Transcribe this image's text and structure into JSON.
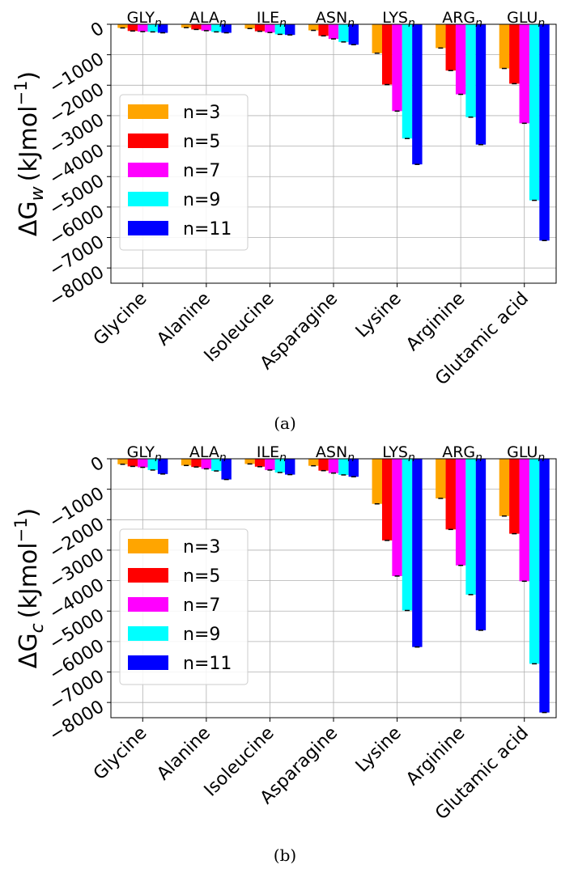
{
  "captions": [
    "(a)",
    "(b)"
  ],
  "colors": [
    "#ffa500",
    "#ff0000",
    "#ff00ff",
    "#00ffff",
    "#0000ff"
  ],
  "chart_data": [
    {
      "type": "bar",
      "ylabel_prefix": "ΔG",
      "ylabel_sub": "w",
      "ylabel_unit": "(kJmol",
      "ylabel_exp": "−1",
      "ylabel_close": ")",
      "categories": [
        "Glycine",
        "Alanine",
        "Isoleucine",
        "Asparagine",
        "Lysine",
        "Arginine",
        "Glutamic acid"
      ],
      "group_labels": [
        {
          "base": "GLY",
          "sub": "n"
        },
        {
          "base": "ALA",
          "sub": "n"
        },
        {
          "base": "ILE",
          "sub": "n"
        },
        {
          "base": "ASN",
          "sub": "n"
        },
        {
          "base": "LYS",
          "sub": "n"
        },
        {
          "base": "ARG",
          "sub": "n"
        },
        {
          "base": "GLU",
          "sub": "n"
        }
      ],
      "ylim": [
        -8500,
        0
      ],
      "yticks": [
        0,
        -1000,
        -2000,
        -3000,
        -4000,
        -5000,
        -6000,
        -7000,
        -8000
      ],
      "ytick_labels": [
        "0",
        "−1000",
        "−2000",
        "−3000",
        "−4000",
        "−5000",
        "−6000",
        "−7000",
        "−8000"
      ],
      "grid": true,
      "legend_position": "lower-left",
      "series": [
        {
          "name": "n=3",
          "values": [
            -120,
            -110,
            -140,
            -200,
            -950,
            -780,
            -1450
          ]
        },
        {
          "name": "n=5",
          "values": [
            -220,
            -170,
            -230,
            -380,
            -1980,
            -1520,
            -1950
          ]
        },
        {
          "name": "n=7",
          "values": [
            -240,
            -210,
            -270,
            -480,
            -2850,
            -2300,
            -3250
          ]
        },
        {
          "name": "n=9",
          "values": [
            -250,
            -250,
            -330,
            -580,
            -3750,
            -3050,
            -5780
          ]
        },
        {
          "name": "n=11",
          "values": [
            -280,
            -280,
            -350,
            -670,
            -4600,
            -3950,
            -7100
          ]
        }
      ]
    },
    {
      "type": "bar",
      "ylabel_prefix": "ΔG",
      "ylabel_sub": "c",
      "ylabel_unit": "(kJmol",
      "ylabel_exp": "−1",
      "ylabel_close": ")",
      "categories": [
        "Glycine",
        "Alanine",
        "Isoleucine",
        "Asparagine",
        "Lysine",
        "Arginine",
        "Glutamic acid"
      ],
      "group_labels": [
        {
          "base": "GLY",
          "sub": "n"
        },
        {
          "base": "ALA",
          "sub": "n"
        },
        {
          "base": "ILE",
          "sub": "n"
        },
        {
          "base": "ASN",
          "sub": "n"
        },
        {
          "base": "LYS",
          "sub": "n"
        },
        {
          "base": "ARG",
          "sub": "n"
        },
        {
          "base": "GLU",
          "sub": "n"
        }
      ],
      "ylim": [
        -8500,
        0
      ],
      "yticks": [
        0,
        -1000,
        -2000,
        -3000,
        -4000,
        -5000,
        -6000,
        -7000,
        -8000
      ],
      "ytick_labels": [
        "0",
        "−1000",
        "−2000",
        "−3000",
        "−4000",
        "−5000",
        "−6000",
        "−7000",
        "−8000"
      ],
      "grid": true,
      "legend_position": "lower-left",
      "series": [
        {
          "name": "n=3",
          "values": [
            -180,
            -220,
            -170,
            -230,
            -1480,
            -1300,
            -1880
          ]
        },
        {
          "name": "n=5",
          "values": [
            -250,
            -270,
            -260,
            -390,
            -2680,
            -2320,
            -2460
          ]
        },
        {
          "name": "n=7",
          "values": [
            -280,
            -330,
            -370,
            -470,
            -3850,
            -3500,
            -4020
          ]
        },
        {
          "name": "n=9",
          "values": [
            -370,
            -400,
            -450,
            -530,
            -4980,
            -4460,
            -6730
          ]
        },
        {
          "name": "n=11",
          "values": [
            -500,
            -680,
            -520,
            -590,
            -6180,
            -5630,
            -8330
          ]
        }
      ]
    }
  ]
}
